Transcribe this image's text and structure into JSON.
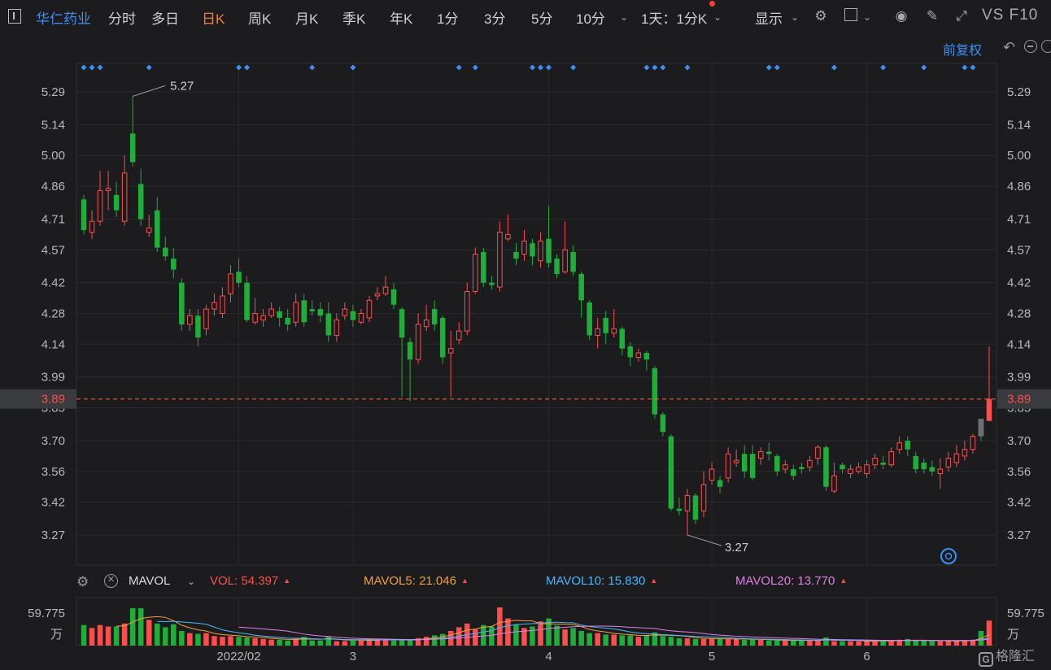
{
  "toolbar": {
    "stock_name": "华仁药业",
    "tabs": [
      "分时",
      "多日",
      "日K",
      "周K",
      "月K",
      "季K",
      "年K",
      "1分",
      "3分",
      "5分",
      "10分"
    ],
    "active_tab": "日K",
    "period": "1天：1分K",
    "display": "显示",
    "vs_f10": "VS F10"
  },
  "adjust": "前复权",
  "colors": {
    "up": "#ff4d4d",
    "down": "#1fae3a",
    "accent": "#3b8ff5",
    "ma5": "#f4a03a",
    "ma10": "#4ab6ff",
    "ma20": "#e27ee6"
  },
  "volume_bar": {
    "name": "MAVOL",
    "items": [
      {
        "label": "VOL: 54.397",
        "color": "#ff4d4d"
      },
      {
        "label": "MAVOL5: 21.046",
        "color": "#f4a03a"
      },
      {
        "label": "MAVOL10: 15.830",
        "color": "#4ab6ff"
      },
      {
        "label": "MAVOL20: 13.770",
        "color": "#e27ee6"
      }
    ]
  },
  "brand": "格隆汇",
  "chart_data": {
    "type": "candlestick",
    "price_ticks": [
      "5.29",
      "5.14",
      "5.00",
      "4.86",
      "4.71",
      "4.57",
      "4.42",
      "4.28",
      "4.14",
      "3.99",
      "3.85",
      "3.70",
      "3.56",
      "3.42",
      "3.27"
    ],
    "price_range": [
      3.2,
      5.35
    ],
    "current_price": "3.89",
    "high_label": "5.27",
    "low_label": "3.27",
    "volume_max_label": "59.775",
    "volume_unit": "万",
    "x_labels": [
      {
        "label": "2022/02",
        "index": 19
      },
      {
        "label": "3",
        "index": 33
      },
      {
        "label": "4",
        "index": 57
      },
      {
        "label": "5",
        "index": 77
      },
      {
        "label": "6",
        "index": 96
      }
    ],
    "marker_indices": [
      0,
      1,
      2,
      8,
      19,
      20,
      28,
      33,
      46,
      48,
      55,
      56,
      57,
      60,
      69,
      70,
      71,
      74,
      84,
      85,
      92,
      98,
      103,
      108,
      109
    ],
    "candles": [
      [
        4.8,
        4.66,
        4.82,
        4.64
      ],
      [
        4.65,
        4.7,
        4.75,
        4.62
      ],
      [
        4.7,
        4.84,
        4.93,
        4.68
      ],
      [
        4.84,
        4.85,
        4.93,
        4.75
      ],
      [
        4.82,
        4.75,
        4.88,
        4.72
      ],
      [
        4.7,
        4.92,
        5.0,
        4.68
      ],
      [
        5.1,
        4.97,
        5.27,
        4.95
      ],
      [
        4.87,
        4.71,
        4.94,
        4.68
      ],
      [
        4.65,
        4.67,
        4.73,
        4.63
      ],
      [
        4.75,
        4.58,
        4.81,
        4.56
      ],
      [
        4.58,
        4.54,
        4.63,
        4.52
      ],
      [
        4.53,
        4.48,
        4.58,
        4.44
      ],
      [
        4.42,
        4.23,
        4.44,
        4.2
      ],
      [
        4.23,
        4.27,
        4.3,
        4.2
      ],
      [
        4.27,
        4.17,
        4.3,
        4.13
      ],
      [
        4.21,
        4.3,
        4.32,
        4.18
      ],
      [
        4.3,
        4.33,
        4.37,
        4.27
      ],
      [
        4.28,
        4.36,
        4.4,
        4.26
      ],
      [
        4.37,
        4.46,
        4.5,
        4.33
      ],
      [
        4.47,
        4.42,
        4.53,
        4.4
      ],
      [
        4.42,
        4.25,
        4.45,
        4.24
      ],
      [
        4.24,
        4.28,
        4.35,
        4.23
      ],
      [
        4.25,
        4.27,
        4.3,
        4.22
      ],
      [
        4.27,
        4.3,
        4.33,
        4.26
      ],
      [
        4.29,
        4.26,
        4.31,
        4.22
      ],
      [
        4.26,
        4.23,
        4.3,
        4.2
      ],
      [
        4.24,
        4.33,
        4.37,
        4.22
      ],
      [
        4.34,
        4.24,
        4.37,
        4.22
      ],
      [
        4.3,
        4.29,
        4.34,
        4.27
      ],
      [
        4.3,
        4.27,
        4.33,
        4.24
      ],
      [
        4.28,
        4.18,
        4.33,
        4.15
      ],
      [
        4.18,
        4.25,
        4.28,
        4.15
      ],
      [
        4.27,
        4.3,
        4.33,
        4.25
      ],
      [
        4.29,
        4.25,
        4.32,
        4.22
      ],
      [
        4.24,
        4.28,
        4.3,
        4.23
      ],
      [
        4.26,
        4.34,
        4.36,
        4.24
      ],
      [
        4.36,
        4.37,
        4.4,
        4.34
      ],
      [
        4.37,
        4.4,
        4.45,
        4.36
      ],
      [
        4.39,
        4.32,
        4.42,
        4.3
      ],
      [
        4.3,
        4.17,
        4.31,
        3.9
      ],
      [
        4.15,
        4.07,
        4.17,
        3.88
      ],
      [
        4.07,
        4.23,
        4.28,
        4.05
      ],
      [
        4.22,
        4.25,
        4.32,
        4.2
      ],
      [
        4.3,
        4.23,
        4.34,
        4.2
      ],
      [
        4.26,
        4.08,
        4.27,
        4.05
      ],
      [
        4.1,
        4.12,
        4.2,
        3.9
      ],
      [
        4.16,
        4.2,
        4.24,
        4.14
      ],
      [
        4.2,
        4.38,
        4.42,
        4.18
      ],
      [
        4.38,
        4.55,
        4.58,
        4.37
      ],
      [
        4.56,
        4.42,
        4.58,
        4.4
      ],
      [
        4.42,
        4.41,
        4.45,
        4.39
      ],
      [
        4.4,
        4.65,
        4.7,
        4.38
      ],
      [
        4.62,
        4.64,
        4.73,
        4.61
      ],
      [
        4.56,
        4.53,
        4.6,
        4.5
      ],
      [
        4.55,
        4.61,
        4.66,
        4.52
      ],
      [
        4.6,
        4.54,
        4.62,
        4.5
      ],
      [
        4.52,
        4.61,
        4.65,
        4.49
      ],
      [
        4.62,
        4.51,
        4.77,
        4.49
      ],
      [
        4.53,
        4.46,
        4.55,
        4.44
      ],
      [
        4.47,
        4.57,
        4.7,
        4.46
      ],
      [
        4.56,
        4.47,
        4.59,
        4.45
      ],
      [
        4.46,
        4.34,
        4.47,
        4.26
      ],
      [
        4.33,
        4.18,
        4.34,
        4.16
      ],
      [
        4.18,
        4.21,
        4.26,
        4.12
      ],
      [
        4.26,
        4.19,
        4.29,
        4.14
      ],
      [
        4.19,
        4.21,
        4.3,
        4.17
      ],
      [
        4.21,
        4.12,
        4.22,
        4.09
      ],
      [
        4.13,
        4.08,
        4.15,
        4.04
      ],
      [
        4.08,
        4.1,
        4.12,
        4.06
      ],
      [
        4.1,
        4.07,
        4.11,
        4.02
      ],
      [
        4.03,
        3.82,
        4.04,
        3.8
      ],
      [
        3.82,
        3.74,
        3.83,
        3.72
      ],
      [
        3.72,
        3.39,
        3.73,
        3.38
      ],
      [
        3.39,
        3.38,
        3.44,
        3.36
      ],
      [
        3.38,
        3.45,
        3.48,
        3.27
      ],
      [
        3.45,
        3.34,
        3.46,
        3.32
      ],
      [
        3.38,
        3.5,
        3.56,
        3.35
      ],
      [
        3.52,
        3.57,
        3.6,
        3.5
      ],
      [
        3.52,
        3.49,
        3.54,
        3.46
      ],
      [
        3.53,
        3.64,
        3.67,
        3.51
      ],
      [
        3.6,
        3.61,
        3.66,
        3.58
      ],
      [
        3.64,
        3.56,
        3.68,
        3.53
      ],
      [
        3.64,
        3.53,
        3.68,
        3.52
      ],
      [
        3.62,
        3.65,
        3.67,
        3.59
      ],
      [
        3.65,
        3.64,
        3.69,
        3.61
      ],
      [
        3.63,
        3.56,
        3.64,
        3.54
      ],
      [
        3.57,
        3.59,
        3.61,
        3.55
      ],
      [
        3.57,
        3.54,
        3.59,
        3.52
      ],
      [
        3.58,
        3.57,
        3.6,
        3.55
      ],
      [
        3.58,
        3.61,
        3.63,
        3.56
      ],
      [
        3.62,
        3.67,
        3.68,
        3.59
      ],
      [
        3.67,
        3.49,
        3.68,
        3.47
      ],
      [
        3.47,
        3.54,
        3.6,
        3.46
      ],
      [
        3.59,
        3.57,
        3.6,
        3.55
      ],
      [
        3.55,
        3.57,
        3.59,
        3.53
      ],
      [
        3.56,
        3.58,
        3.6,
        3.55
      ],
      [
        3.55,
        3.59,
        3.61,
        3.53
      ],
      [
        3.59,
        3.62,
        3.64,
        3.57
      ],
      [
        3.6,
        3.59,
        3.63,
        3.57
      ],
      [
        3.59,
        3.65,
        3.67,
        3.58
      ],
      [
        3.66,
        3.69,
        3.72,
        3.64
      ],
      [
        3.7,
        3.66,
        3.72,
        3.63
      ],
      [
        3.63,
        3.57,
        3.65,
        3.55
      ],
      [
        3.6,
        3.57,
        3.62,
        3.55
      ],
      [
        3.58,
        3.56,
        3.61,
        3.54
      ],
      [
        3.55,
        3.57,
        3.62,
        3.48
      ],
      [
        3.58,
        3.62,
        3.65,
        3.56
      ],
      [
        3.6,
        3.64,
        3.68,
        3.58
      ],
      [
        3.63,
        3.66,
        3.7,
        3.61
      ],
      [
        3.66,
        3.72,
        3.73,
        3.64
      ],
      [
        3.8,
        3.72,
        3.8,
        3.7
      ],
      [
        3.79,
        3.89,
        4.13,
        3.79
      ]
    ],
    "volumes": [
      28,
      24,
      28,
      26,
      26,
      30,
      51,
      51,
      35,
      30,
      25,
      29,
      20,
      17,
      16,
      17,
      13,
      12,
      13,
      12,
      11,
      10,
      9,
      8,
      8,
      7,
      10,
      12,
      7,
      7,
      12,
      6,
      6,
      7,
      8,
      8,
      8,
      9,
      7,
      8,
      8,
      10,
      12,
      14,
      16,
      20,
      25,
      30,
      22,
      28,
      26,
      52,
      37,
      29,
      24,
      26,
      33,
      37,
      27,
      22,
      24,
      20,
      17,
      17,
      15,
      15,
      14,
      14,
      12,
      14,
      18,
      13,
      12,
      10,
      10,
      9,
      9,
      10,
      9,
      9,
      9,
      8,
      8,
      8,
      7,
      7,
      7,
      7,
      7,
      7,
      7,
      11,
      6,
      6,
      6,
      6,
      6,
      7,
      6,
      7,
      8,
      9,
      7,
      6,
      6,
      6,
      6,
      7,
      7,
      8,
      20,
      34
    ]
  }
}
